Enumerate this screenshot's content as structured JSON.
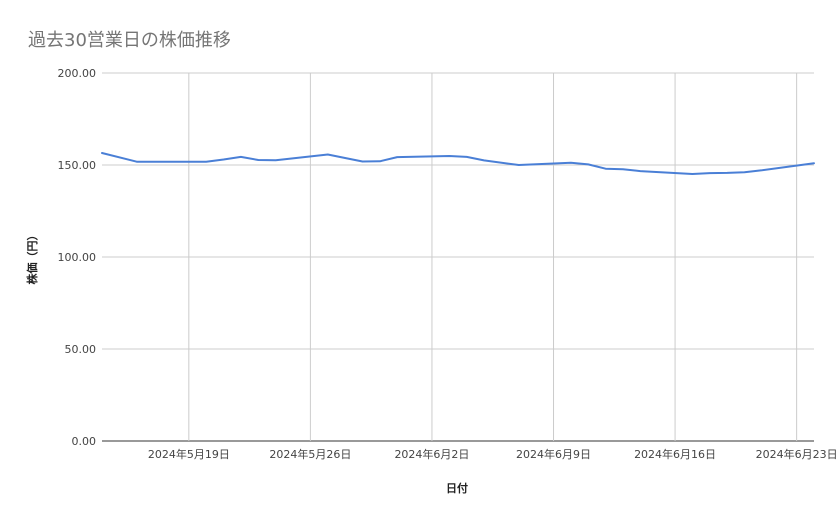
{
  "chart_data": {
    "type": "line",
    "title": "過去30営業日の株価推移",
    "xlabel": "日付",
    "ylabel": "株価（円）",
    "ylim": [
      0,
      200
    ],
    "y_ticks": [
      "0.00",
      "50.00",
      "100.00",
      "150.00",
      "200.00"
    ],
    "x_range": [
      "2024-05-14",
      "2024-06-24"
    ],
    "x_ticks": [
      {
        "date": "2024-05-19",
        "label": "2024年5月19日"
      },
      {
        "date": "2024-05-26",
        "label": "2024年5月26日"
      },
      {
        "date": "2024-06-02",
        "label": "2024年6月2日"
      },
      {
        "date": "2024-06-09",
        "label": "2024年6月9日"
      },
      {
        "date": "2024-06-16",
        "label": "2024年6月16日"
      },
      {
        "date": "2024-06-23",
        "label": "2024年6月23日"
      }
    ],
    "grid": true,
    "series": [
      {
        "color": "#4a7fd6",
        "points": [
          {
            "x": "2024-05-14",
            "y": 156.5
          },
          {
            "x": "2024-05-16",
            "y": 151.8
          },
          {
            "x": "2024-05-17",
            "y": 151.8
          },
          {
            "x": "2024-05-20",
            "y": 151.8
          },
          {
            "x": "2024-05-21",
            "y": 153.0
          },
          {
            "x": "2024-05-22",
            "y": 154.4
          },
          {
            "x": "2024-05-23",
            "y": 152.7
          },
          {
            "x": "2024-05-24",
            "y": 152.6
          },
          {
            "x": "2024-05-27",
            "y": 155.7
          },
          {
            "x": "2024-05-28",
            "y": 153.8
          },
          {
            "x": "2024-05-29",
            "y": 151.9
          },
          {
            "x": "2024-05-30",
            "y": 152.0
          },
          {
            "x": "2024-05-31",
            "y": 154.3
          },
          {
            "x": "2024-06-03",
            "y": 154.9
          },
          {
            "x": "2024-06-04",
            "y": 154.4
          },
          {
            "x": "2024-06-05",
            "y": 152.5
          },
          {
            "x": "2024-06-07",
            "y": 150.0
          },
          {
            "x": "2024-06-10",
            "y": 151.2
          },
          {
            "x": "2024-06-11",
            "y": 150.3
          },
          {
            "x": "2024-06-12",
            "y": 148.0
          },
          {
            "x": "2024-06-13",
            "y": 147.7
          },
          {
            "x": "2024-06-14",
            "y": 146.7
          },
          {
            "x": "2024-06-17",
            "y": 145.1
          },
          {
            "x": "2024-06-18",
            "y": 145.6
          },
          {
            "x": "2024-06-19",
            "y": 145.7
          },
          {
            "x": "2024-06-20",
            "y": 146.1
          },
          {
            "x": "2024-06-21",
            "y": 147.1
          },
          {
            "x": "2024-06-24",
            "y": 151.0
          }
        ]
      }
    ]
  }
}
